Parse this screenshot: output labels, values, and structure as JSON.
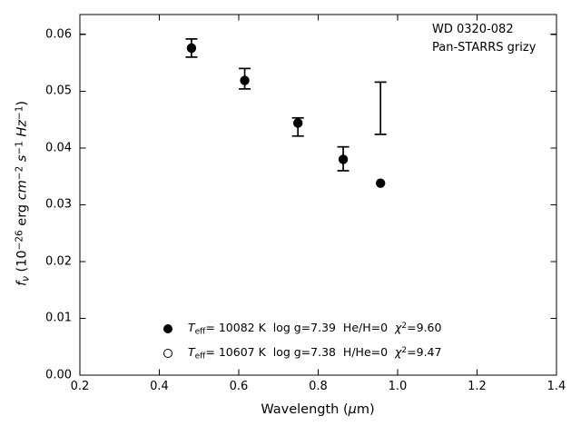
{
  "figure": {
    "annotation": {
      "line1": "WD 0320-082",
      "line2": "Pan-STARRS grizy"
    },
    "xlabel_segments": [
      {
        "t": "Wavelength ("
      },
      {
        "t": "μ",
        "it": true
      },
      {
        "t": "m)"
      }
    ],
    "ylabel_segments": [
      {
        "t": "f",
        "it": true
      },
      {
        "t": "ν",
        "it": true,
        "sub": true
      },
      {
        "t": " (10"
      },
      {
        "t": "−26",
        "sup": true
      },
      {
        "t": " erg "
      },
      {
        "t": "cm",
        "it": true
      },
      {
        "t": "−2",
        "sup": true
      },
      {
        "t": " "
      },
      {
        "t": "s",
        "it": true
      },
      {
        "t": "−1",
        "sup": true
      },
      {
        "t": " "
      },
      {
        "t": "Hz",
        "it": true
      },
      {
        "t": "−1",
        "sup": true
      },
      {
        "t": ")"
      }
    ]
  },
  "chart_data": {
    "type": "scatter",
    "title": "",
    "target": "WD 0320-082",
    "survey": "Pan-STARRS grizy",
    "xlabel": "Wavelength (μm)",
    "ylabel": "f_ν (10^−26 erg cm^−2 s^−1 Hz^−1)",
    "xlim": [
      0.2,
      1.4
    ],
    "ylim": [
      0.0,
      0.0635
    ],
    "grid": false,
    "tick_style": "inward, all four sides, majors only",
    "xticks": {
      "values": [
        0.2,
        0.4,
        0.6,
        0.8,
        1.0,
        1.2,
        1.4
      ],
      "labels": [
        "0.2",
        "0.4",
        "0.6",
        "0.8",
        "1.0",
        "1.2",
        "1.4"
      ]
    },
    "yticks": {
      "values": [
        0.0,
        0.01,
        0.02,
        0.03,
        0.04,
        0.05,
        0.06
      ],
      "labels": [
        "0.00",
        "0.01",
        "0.02",
        "0.03",
        "0.04",
        "0.05",
        "0.06"
      ]
    },
    "series": [
      {
        "name": "observed-photometry",
        "style": "errorbar-only",
        "color": "#000000",
        "bands": [
          "g",
          "r",
          "i",
          "z",
          "y"
        ],
        "x": [
          0.481,
          0.615,
          0.749,
          0.863,
          0.957
        ],
        "y": [
          0.0576,
          0.0522,
          0.0437,
          0.0381,
          0.047
        ],
        "yerr": [
          0.0016,
          0.0018,
          0.0016,
          0.0021,
          0.0046
        ]
      },
      {
        "name": "model-H-atmosphere",
        "style": "filled-circle",
        "color": "#000000",
        "bands": [
          "g",
          "r",
          "i",
          "z",
          "y"
        ],
        "x": [
          0.481,
          0.615,
          0.749,
          0.863,
          0.957
        ],
        "y": [
          0.0576,
          0.0519,
          0.0444,
          0.038,
          0.0338
        ]
      },
      {
        "name": "model-He-atmosphere",
        "style": "open-circle",
        "color": "#000000",
        "note": "no open circles separately visible; coincident with / hidden behind filled circles",
        "x": [],
        "y": []
      }
    ],
    "legend": {
      "position": "lower center-left",
      "entries": [
        {
          "marker": "filled-circle",
          "label": "T_eff= 10082 K  log g=7.39  He/H=0  χ²=9.60",
          "segments": [
            {
              "t": "T",
              "it": true
            },
            {
              "t": "eff",
              "sub": true
            },
            {
              "t": "= 10082 K  log g=7.39  He/H=0  "
            },
            {
              "t": "χ",
              "it": true
            },
            {
              "t": "2",
              "sup": true
            },
            {
              "t": "=9.60"
            }
          ]
        },
        {
          "marker": "open-circle",
          "label": "T_eff= 10607 K  log g=7.38  H/He=0  χ²=9.47",
          "segments": [
            {
              "t": "T",
              "it": true
            },
            {
              "t": "eff",
              "sub": true
            },
            {
              "t": "= 10607 K  log g=7.38  H/He=0  "
            },
            {
              "t": "χ",
              "it": true
            },
            {
              "t": "2",
              "sup": true
            },
            {
              "t": "=9.47"
            }
          ]
        }
      ]
    }
  }
}
